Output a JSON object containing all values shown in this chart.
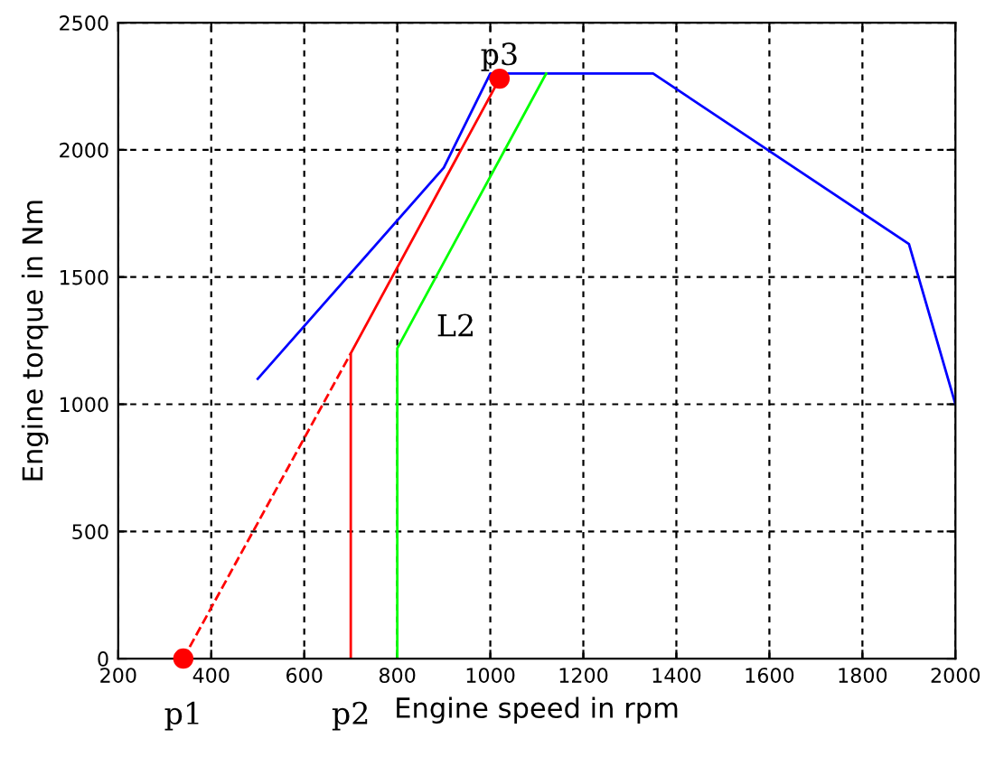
{
  "chart_data": {
    "type": "line",
    "xlabel": "Engine speed in rpm",
    "ylabel": "Engine torque in Nm",
    "xlim": [
      200,
      2000
    ],
    "ylim": [
      0,
      2500
    ],
    "xticks": [
      200,
      400,
      600,
      800,
      1000,
      1200,
      1400,
      1600,
      1800,
      2000
    ],
    "yticks": [
      0,
      500,
      1000,
      1500,
      2000,
      2500
    ],
    "grid": true,
    "legend": false,
    "series": [
      {
        "color": "#0000ff",
        "x": [
          500,
          900,
          1000,
          1350,
          1900,
          2000
        ],
        "values": [
          1100,
          1930,
          2300,
          2300,
          1630,
          1000
        ]
      },
      {
        "color": "#ff0000",
        "x": [
          700,
          700,
          1020
        ],
        "values": [
          0,
          1200,
          2280
        ]
      },
      {
        "color": "#ff0000",
        "x": [
          340,
          700
        ],
        "values": [
          0,
          1200
        ],
        "line_style": "dashed"
      },
      {
        "color": "#00ff00",
        "x": [
          800,
          800,
          1120
        ],
        "values": [
          0,
          1220,
          2300
        ]
      },
      {
        "type": "scatter",
        "color": "#ff0000",
        "x": [
          340,
          1020
        ],
        "values": [
          0,
          2280
        ],
        "marker": "circle"
      }
    ],
    "annotations": [
      {
        "text": "p1",
        "x": 340,
        "y": 0
      },
      {
        "text": "p2",
        "x": 700,
        "y": 0
      },
      {
        "text": "p3",
        "x": 1020,
        "y": 2280
      },
      "L2"
    ]
  }
}
